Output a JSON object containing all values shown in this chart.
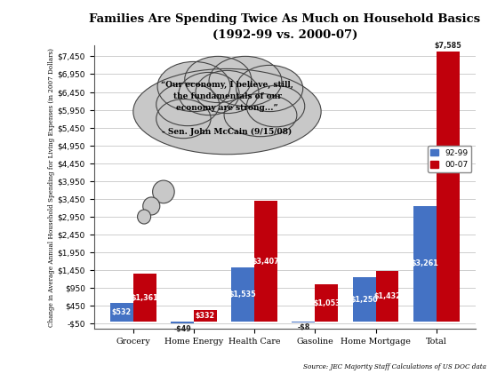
{
  "title": "Families Are Spending Twice As Much on Household Basics",
  "subtitle": "(1992-99 vs. 2000-07)",
  "categories": [
    "Grocery",
    "Home Energy",
    "Health Care",
    "Gasoline",
    "Home Mortgage",
    "Total"
  ],
  "values_92_99": [
    532,
    -49,
    1535,
    -8,
    1250,
    3261
  ],
  "values_00_07": [
    1361,
    332,
    3407,
    1053,
    1432,
    7585
  ],
  "labels_92_99": [
    "$532",
    "-$49",
    "$1,535",
    "-$8",
    "$1,250",
    "$3,261"
  ],
  "labels_00_07": [
    "$1,361",
    "$332",
    "$3,407",
    "$1,053",
    "$1,432",
    "$7,585"
  ],
  "color_92_99": "#4472C4",
  "color_00_07": "#C0000C",
  "ylabel": "Change in Average Annual Household Spending for Living Expenses (in 2007 Dollars)",
  "ylim_min": -200,
  "ylim_max": 7750,
  "yticks": [
    -50,
    450,
    950,
    1450,
    1950,
    2450,
    2950,
    3450,
    3950,
    4450,
    4950,
    5450,
    5950,
    6450,
    6950,
    7450
  ],
  "ytick_labels": [
    "-$50",
    "$450",
    "$950",
    "$1,450",
    "$1,950",
    "$2,450",
    "$2,950",
    "$3,450",
    "$3,950",
    "$4,450",
    "$4,950",
    "$5,450",
    "$5,950",
    "$6,450",
    "$6,950",
    "$7,450"
  ],
  "source_text": "Source: JEC Majority Staff Calculations of US DOC data",
  "cloud_text": "“Our economy, I believe, still,\nthe fundamentals of our\neconomy are strong...”\n\n- Sen. John McCain (9/15/08)",
  "bg_color": "#FFFFFF",
  "legend_92_99": "92-99",
  "legend_00_07": "00-07",
  "cloud_color": "#C8C8C8",
  "cloud_edge_color": "#444444"
}
